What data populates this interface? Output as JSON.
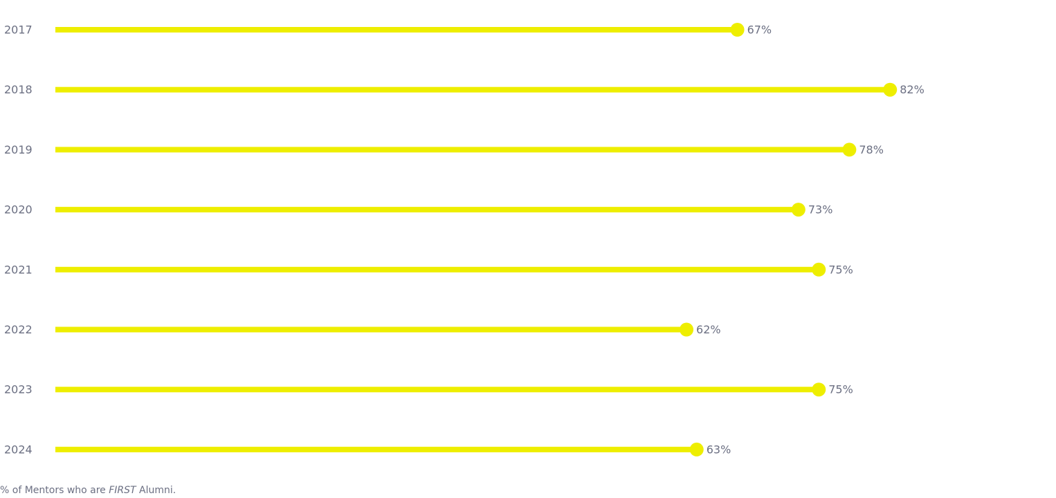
{
  "chart_data": {
    "type": "bar",
    "style": "lollipop",
    "orientation": "horizontal",
    "categories": [
      "2017",
      "2018",
      "2019",
      "2020",
      "2021",
      "2022",
      "2023",
      "2024"
    ],
    "values": [
      67,
      82,
      78,
      73,
      75,
      62,
      75,
      63
    ],
    "value_suffix": "%",
    "xlim": [
      0,
      100
    ],
    "grid": false,
    "legend": "none",
    "bar_color": "#eeee00",
    "label_color": "#6b6f82"
  },
  "caption": {
    "prefix": "% of Mentors who are ",
    "emphasis": "FIRST",
    "suffix": " Alumni."
  }
}
